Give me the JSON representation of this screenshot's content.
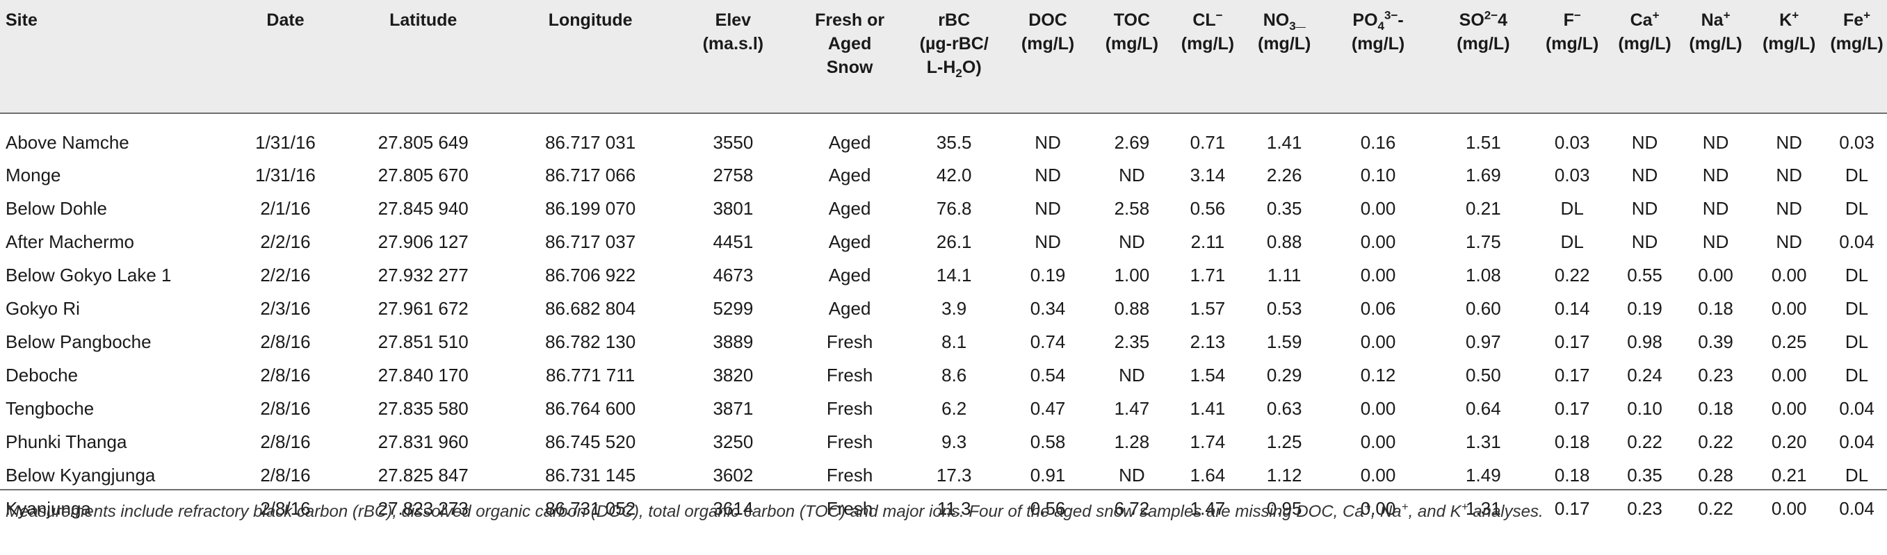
{
  "table": {
    "headers": {
      "site": "Site",
      "date": "Date",
      "latitude": "Latitude",
      "longitude": "Longitude",
      "elev_l1": "Elev",
      "elev_l2": "(ma.s.l)",
      "snow_l1": "Fresh or",
      "snow_l2": "Aged",
      "snow_l3": "Snow",
      "rbc_l1": "rBC",
      "rbc_l2": "(µg-rBC/",
      "rbc_l3_a": "L-H",
      "rbc_l3_sub": "2",
      "rbc_l3_b": "O)",
      "doc_l1": "DOC",
      "doc_l2": "(mg/L)",
      "toc_l1": "TOC",
      "toc_l2": "(mg/L)",
      "cl_base": "CL",
      "cl_sup": "−",
      "cl_l2": "(mg/L)",
      "no3_base": "NO",
      "no3_sub": "3",
      "no3_tail": "_",
      "no3_l2": "(mg/L)",
      "po4_base": "PO",
      "po4_sub": "4",
      "po4_sup": "3−",
      "po4_tail": "-",
      "po4_l2": "(mg/L)",
      "so4_base": "SO",
      "so4_sup": "2−",
      "so4_tail": "4",
      "so4_l2": "(mg/L)",
      "f_base": "F",
      "f_sup": "−",
      "f_l2": "(mg/L)",
      "ca_base": "Ca",
      "ca_sup": "+",
      "ca_l2": "(mg/L)",
      "na_base": "Na",
      "na_sup": "+",
      "na_l2": "(mg/L)",
      "k_base": "K",
      "k_sup": "+",
      "k_l2": "(mg/L)",
      "fe_base": "Fe",
      "fe_sup": "+",
      "fe_l2": "(mg/L)"
    },
    "rows": [
      [
        "Above Namche",
        "1/31/16",
        "27.805 649",
        "86.717 031",
        "3550",
        "Aged",
        "35.5",
        "ND",
        "2.69",
        "0.71",
        "1.41",
        "0.16",
        "1.51",
        "0.03",
        "ND",
        "ND",
        "ND",
        "0.03"
      ],
      [
        "Monge",
        "1/31/16",
        "27.805 670",
        "86.717 066",
        "2758",
        "Aged",
        "42.0",
        "ND",
        "ND",
        "3.14",
        "2.26",
        "0.10",
        "1.69",
        "0.03",
        "ND",
        "ND",
        "ND",
        "DL"
      ],
      [
        "Below Dohle",
        "2/1/16",
        "27.845 940",
        "86.199 070",
        "3801",
        "Aged",
        "76.8",
        "ND",
        "2.58",
        "0.56",
        "0.35",
        "0.00",
        "0.21",
        "DL",
        "ND",
        "ND",
        "ND",
        "DL"
      ],
      [
        "After Machermo",
        "2/2/16",
        "27.906 127",
        "86.717 037",
        "4451",
        "Aged",
        "26.1",
        "ND",
        "ND",
        "2.11",
        "0.88",
        "0.00",
        "1.75",
        "DL",
        "ND",
        "ND",
        "ND",
        "0.04"
      ],
      [
        "Below Gokyo Lake 1",
        "2/2/16",
        "27.932 277",
        "86.706 922",
        "4673",
        "Aged",
        "14.1",
        "0.19",
        "1.00",
        "1.71",
        "1.11",
        "0.00",
        "1.08",
        "0.22",
        "0.55",
        "0.00",
        "0.00",
        "DL"
      ],
      [
        "Gokyo Ri",
        "2/3/16",
        "27.961 672",
        "86.682 804",
        "5299",
        "Aged",
        "3.9",
        "0.34",
        "0.88",
        "1.57",
        "0.53",
        "0.06",
        "0.60",
        "0.14",
        "0.19",
        "0.18",
        "0.00",
        "DL"
      ],
      [
        "Below Pangboche",
        "2/8/16",
        "27.851 510",
        "86.782 130",
        "3889",
        "Fresh",
        "8.1",
        "0.74",
        "2.35",
        "2.13",
        "1.59",
        "0.00",
        "0.97",
        "0.17",
        "0.98",
        "0.39",
        "0.25",
        "DL"
      ],
      [
        "Deboche",
        "2/8/16",
        "27.840 170",
        "86.771 711",
        "3820",
        "Fresh",
        "8.6",
        "0.54",
        "ND",
        "1.54",
        "0.29",
        "0.12",
        "0.50",
        "0.17",
        "0.24",
        "0.23",
        "0.00",
        "DL"
      ],
      [
        "Tengboche",
        "2/8/16",
        "27.835 580",
        "86.764 600",
        "3871",
        "Fresh",
        "6.2",
        "0.47",
        "1.47",
        "1.41",
        "0.63",
        "0.00",
        "0.64",
        "0.17",
        "0.10",
        "0.18",
        "0.00",
        "0.04"
      ],
      [
        "Phunki Thanga",
        "2/8/16",
        "27.831 960",
        "86.745 520",
        "3250",
        "Fresh",
        "9.3",
        "0.58",
        "1.28",
        "1.74",
        "1.25",
        "0.00",
        "1.31",
        "0.18",
        "0.22",
        "0.22",
        "0.20",
        "0.04"
      ],
      [
        "Below Kyangjunga",
        "2/8/16",
        "27.825 847",
        "86.731 145",
        "3602",
        "Fresh",
        "17.3",
        "0.91",
        "ND",
        "1.64",
        "1.12",
        "0.00",
        "1.49",
        "0.18",
        "0.35",
        "0.28",
        "0.21",
        "DL"
      ],
      [
        "Kyanjunga",
        "2/8/16",
        "27.823 273",
        "86.731 052",
        "3614",
        "Fresh",
        "11.3",
        "0.56",
        "6.72",
        "1.47",
        "0.95",
        "0.00",
        "1.31",
        "0.17",
        "0.23",
        "0.22",
        "0.00",
        "0.04"
      ]
    ]
  },
  "footnote": {
    "part1": "Measurements include refractory black carbon (rBC), dissolved organic carbon (DOC), total organic carbon (TOC) and major ions. Four of the aged snow samples are missing DOC, Ca",
    "sup1": "+",
    "part2": ", Na",
    "sup2": "+",
    "part3": ", and K",
    "sup3": "+",
    "part4": " analyses."
  },
  "colors": {
    "header_bg": "#ececec",
    "rule": "#6f6f6f",
    "text": "#1a1a1a"
  }
}
